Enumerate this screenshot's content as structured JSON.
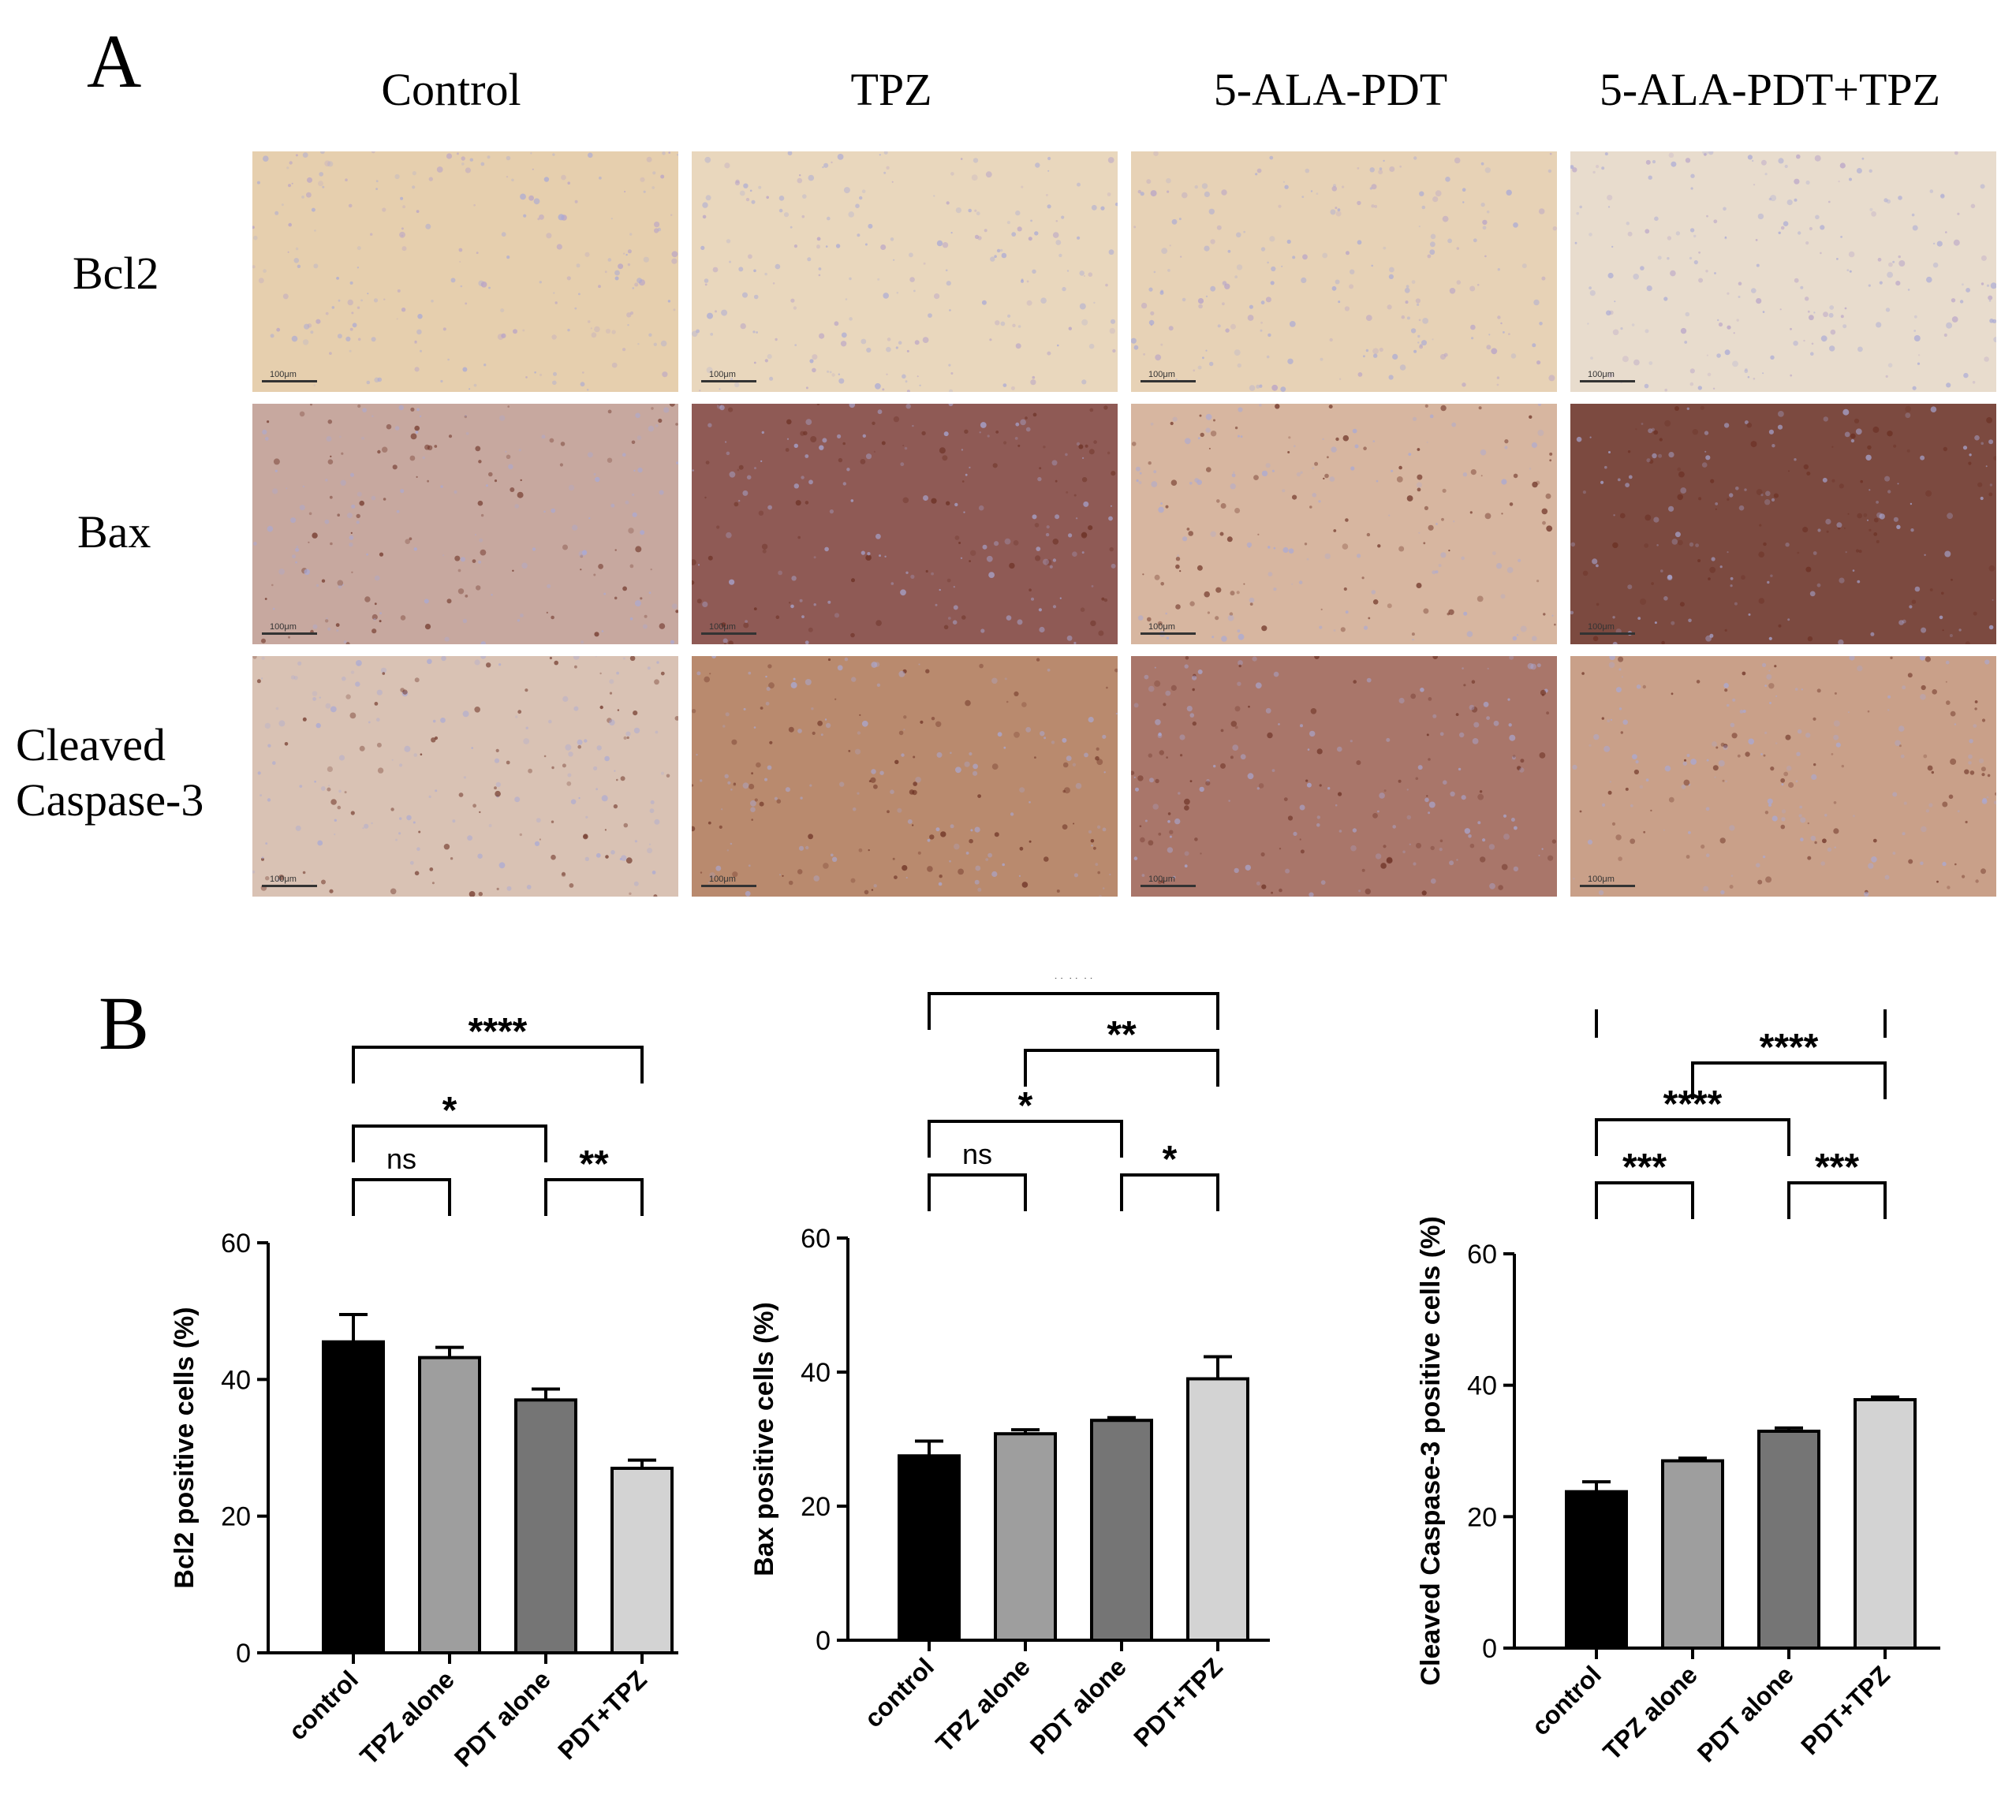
{
  "panel_a": {
    "letter": "A",
    "columns": [
      "Control",
      "TPZ",
      "5-ALA-PDT",
      "5-ALA-PDT+TPZ"
    ],
    "rows": [
      "Bcl2",
      "Bax",
      "Cleaved\nCaspase-3"
    ],
    "scale_label": "100μm",
    "tile_colors": [
      [
        "#e6cfae",
        "#e9d7bd",
        "#e7d2b6",
        "#e8dccd"
      ],
      [
        "#c7a89f",
        "#8f5a55",
        "#d7b6a0",
        "#7c4a40"
      ],
      [
        "#d9c2b4",
        "#b98a6e",
        "#a9766a",
        "#c9a089"
      ]
    ]
  },
  "panel_b": {
    "letter": "B"
  },
  "chart_data": [
    {
      "type": "bar",
      "categories": [
        "control",
        "TPZ alone",
        "PDT alone",
        "PDT+TPZ"
      ],
      "values": [
        45.5,
        43.2,
        37.0,
        27.0
      ],
      "errors": [
        4.0,
        1.5,
        1.6,
        1.2
      ],
      "colors": [
        "#000000",
        "#9e9e9e",
        "#757575",
        "#d3d3d3"
      ],
      "ylabel": "Bcl2 positive cells (%)",
      "ylim": [
        0,
        60
      ],
      "yticks": [
        0,
        20,
        40,
        60
      ],
      "significance": [
        {
          "from": 0,
          "to": 1,
          "label": "ns"
        },
        {
          "from": 2,
          "to": 3,
          "label": "**"
        },
        {
          "from": 0,
          "to": 2,
          "label": "*"
        },
        {
          "from": 0,
          "to": 3,
          "label": "****"
        }
      ]
    },
    {
      "type": "bar",
      "categories": [
        "control",
        "TPZ alone",
        "PDT alone",
        "PDT+TPZ"
      ],
      "values": [
        27.5,
        30.8,
        32.8,
        39.0
      ],
      "errors": [
        2.2,
        0.6,
        0.4,
        3.3
      ],
      "colors": [
        "#000000",
        "#9e9e9e",
        "#757575",
        "#d3d3d3"
      ],
      "ylabel": "Bax positive cells (%)",
      "ylim": [
        0,
        60
      ],
      "yticks": [
        0,
        20,
        40,
        60
      ],
      "significance": [
        {
          "from": 0,
          "to": 1,
          "label": "ns"
        },
        {
          "from": 2,
          "to": 3,
          "label": "*"
        },
        {
          "from": 0,
          "to": 2,
          "label": "*"
        },
        {
          "from": 1,
          "to": 3,
          "label": "**"
        },
        {
          "from": 0,
          "to": 3,
          "label": "***"
        }
      ]
    },
    {
      "type": "bar",
      "categories": [
        "control",
        "TPZ alone",
        "PDT alone",
        "PDT+TPZ"
      ],
      "values": [
        23.8,
        28.5,
        33.0,
        37.8
      ],
      "errors": [
        1.5,
        0.4,
        0.5,
        0.4
      ],
      "colors": [
        "#000000",
        "#9e9e9e",
        "#757575",
        "#d3d3d3"
      ],
      "ylabel": "Cleaved Caspase-3 positive cells (%)",
      "ylim": [
        0,
        60
      ],
      "yticks": [
        0,
        20,
        40,
        60
      ],
      "significance": [
        {
          "from": 0,
          "to": 1,
          "label": "***"
        },
        {
          "from": 2,
          "to": 3,
          "label": "***"
        },
        {
          "from": 0,
          "to": 2,
          "label": "****"
        },
        {
          "from": 1,
          "to": 3,
          "label": "****"
        },
        {
          "from": 0,
          "to": 3,
          "label": "****"
        }
      ]
    }
  ]
}
